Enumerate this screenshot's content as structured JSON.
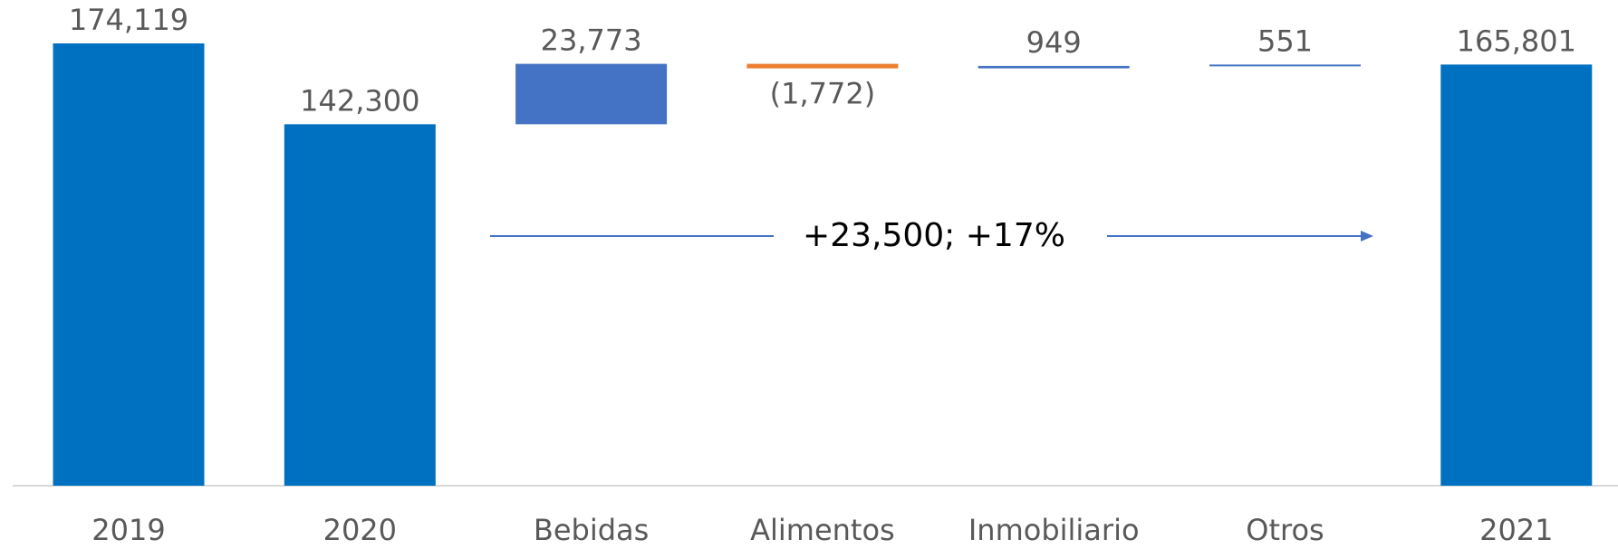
{
  "chart_data": {
    "type": "waterfall",
    "categories": [
      "2019",
      "2020",
      "Bebidas",
      "Alimentos",
      "Inmobiliario",
      "Otros",
      "2021"
    ],
    "values": [
      174119,
      142300,
      23773,
      -1772,
      949,
      551,
      165801
    ],
    "value_labels": [
      "174,119",
      "142,300",
      "23,773",
      "(1,772)",
      "949",
      "551",
      "165,801"
    ],
    "measure": [
      "total",
      "total",
      "relative",
      "relative",
      "relative",
      "relative",
      "total"
    ],
    "colors": [
      "#0070c0",
      "#0070c0",
      "#4472c4",
      "#ed7d31",
      "#4472c4",
      "#4472c4",
      "#0070c0"
    ],
    "annotation": "+23,500; +17%"
  }
}
